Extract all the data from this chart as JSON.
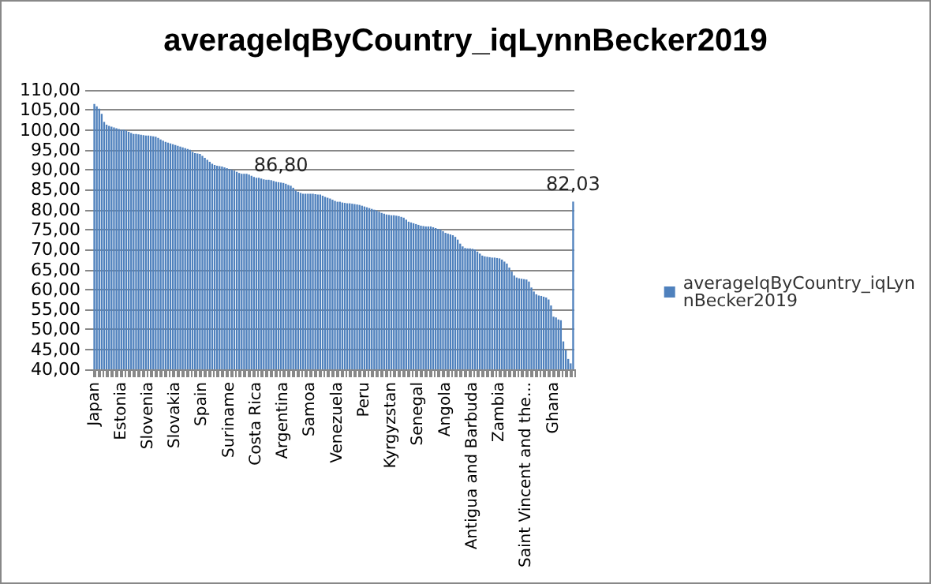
{
  "chart_data": {
    "type": "bar",
    "title": "averageIqByCountry_iqLynnBecker2019",
    "categories": [
      "Japan",
      null,
      null,
      null,
      null,
      null,
      null,
      null,
      null,
      null,
      null,
      "Estonia",
      null,
      null,
      null,
      null,
      null,
      null,
      null,
      null,
      null,
      null,
      "Slovenia",
      null,
      null,
      null,
      null,
      null,
      null,
      null,
      null,
      null,
      null,
      "Slovakia",
      null,
      null,
      null,
      null,
      null,
      null,
      null,
      null,
      null,
      null,
      "Spain",
      null,
      null,
      null,
      null,
      null,
      null,
      null,
      null,
      null,
      null,
      "Suriname",
      null,
      null,
      null,
      null,
      null,
      null,
      null,
      null,
      null,
      null,
      "Costa Rica",
      null,
      null,
      null,
      null,
      null,
      null,
      null,
      null,
      null,
      null,
      "Argentina",
      null,
      null,
      null,
      null,
      null,
      null,
      null,
      null,
      null,
      null,
      "Samoa",
      null,
      null,
      null,
      null,
      null,
      null,
      null,
      null,
      null,
      null,
      "Venezuela",
      null,
      null,
      null,
      null,
      null,
      null,
      null,
      null,
      null,
      null,
      "Peru",
      null,
      null,
      null,
      null,
      null,
      null,
      null,
      null,
      null,
      null,
      "Kyrgyzstan",
      null,
      null,
      null,
      null,
      null,
      null,
      null,
      null,
      null,
      null,
      "Senegal",
      null,
      null,
      null,
      null,
      null,
      null,
      null,
      null,
      null,
      null,
      "Angola",
      null,
      null,
      null,
      null,
      null,
      null,
      null,
      null,
      null,
      null,
      "Antigua and Barbuda",
      null,
      null,
      null,
      null,
      null,
      null,
      null,
      null,
      null,
      null,
      "Zambia",
      null,
      null,
      null,
      null,
      null,
      null,
      null,
      null,
      null,
      null,
      "Saint Vincent and the...",
      null,
      null,
      null,
      null,
      null,
      null,
      null,
      null,
      null,
      null,
      "Ghana",
      null,
      null,
      null,
      null,
      null,
      null,
      null,
      null
    ],
    "series": [
      {
        "name": "averageIqByCountry_iqLynnBecker2019",
        "color": "#4f81bd",
        "values": [
          106.5,
          105.9,
          105.3,
          104,
          102,
          101.3,
          101,
          100.8,
          100.6,
          100.4,
          100.2,
          100,
          100,
          99.8,
          99.5,
          99.2,
          99,
          99,
          98.9,
          98.8,
          98.7,
          98.6,
          98.6,
          98.5,
          98.4,
          98.3,
          98,
          97.6,
          97.3,
          97,
          96.8,
          96.6,
          96.4,
          96.2,
          96,
          95.8,
          95.6,
          95.4,
          95.2,
          95,
          94.5,
          94.2,
          94.1,
          94,
          93.5,
          93,
          92.5,
          92,
          91.5,
          91.2,
          91,
          90.9,
          90.8,
          90.6,
          90.4,
          90.2,
          90,
          89.8,
          89.5,
          89.2,
          89,
          89,
          89,
          88.8,
          88.5,
          88.2,
          88,
          88,
          87.8,
          87.6,
          87.5,
          87.5,
          87.4,
          87.2,
          87,
          86.9,
          86.8,
          86.7,
          86.5,
          86.2,
          86,
          85.5,
          84.8,
          84.5,
          84.2,
          84,
          84,
          84,
          84,
          84,
          83.9,
          83.8,
          83.8,
          83.5,
          83.2,
          83,
          82.8,
          82.5,
          82.2,
          82,
          82,
          81.8,
          81.7,
          81.6,
          81.6,
          81.5,
          81.4,
          81.3,
          81.2,
          81,
          80.8,
          80.6,
          80.4,
          80.2,
          80,
          79.8,
          79.5,
          79.2,
          79,
          78.8,
          78.7,
          78.6,
          78.6,
          78.5,
          78.4,
          78.2,
          78,
          77.5,
          77,
          76.8,
          76.6,
          76.4,
          76.2,
          76,
          75.9,
          75.8,
          75.8,
          75.8,
          75.6,
          75.4,
          75.2,
          75,
          74.6,
          74.2,
          74,
          73.8,
          73.6,
          73.2,
          72.5,
          71.5,
          70.8,
          70.4,
          70.3,
          70.3,
          70.2,
          70,
          69.5,
          69,
          68.5,
          68.3,
          68.2,
          68.1,
          68,
          68,
          67.9,
          67.8,
          67.5,
          67,
          66.5,
          65.5,
          64.5,
          63.5,
          63,
          62.8,
          62.7,
          62.6,
          62.5,
          62,
          60.5,
          59.5,
          58.8,
          58.5,
          58.4,
          58.2,
          58,
          57.5,
          56,
          53.2,
          53,
          52.5,
          52.3,
          47,
          44.8,
          42.6,
          41.5,
          82.03
        ],
        "value_labels": [
          null,
          null,
          null,
          null,
          null,
          null,
          null,
          null,
          null,
          null,
          null,
          null,
          null,
          null,
          null,
          null,
          null,
          null,
          null,
          null,
          null,
          null,
          null,
          null,
          null,
          null,
          null,
          null,
          null,
          null,
          null,
          null,
          null,
          null,
          null,
          null,
          null,
          null,
          null,
          null,
          null,
          null,
          null,
          null,
          null,
          null,
          null,
          null,
          null,
          null,
          null,
          null,
          null,
          null,
          null,
          null,
          null,
          null,
          null,
          null,
          null,
          null,
          null,
          null,
          null,
          null,
          null,
          null,
          null,
          null,
          null,
          null,
          null,
          null,
          null,
          null,
          "86,80",
          null,
          null,
          null,
          null,
          null,
          null,
          null,
          null,
          null,
          null,
          null,
          null,
          null,
          null,
          null,
          null,
          null,
          null,
          null,
          null,
          null,
          null,
          null,
          null,
          null,
          null,
          null,
          null,
          null,
          null,
          null,
          null,
          null,
          null,
          null,
          null,
          null,
          null,
          null,
          null,
          null,
          null,
          null,
          null,
          null,
          null,
          null,
          null,
          null,
          null,
          null,
          null,
          null,
          null,
          null,
          null,
          null,
          null,
          null,
          null,
          null,
          null,
          null,
          null,
          null,
          null,
          null,
          null,
          null,
          null,
          null,
          null,
          null,
          null,
          null,
          null,
          null,
          null,
          null,
          null,
          null,
          null,
          null,
          null,
          null,
          null,
          null,
          null,
          null,
          null,
          null,
          null,
          null,
          null,
          null,
          null,
          null,
          null,
          null,
          null,
          null,
          null,
          null,
          null,
          null,
          null,
          null,
          null,
          null,
          null,
          null,
          null,
          null,
          null,
          null,
          null,
          null,
          null,
          "82,03"
        ]
      }
    ],
    "ylim": [
      40,
      110
    ],
    "yticks": [
      {
        "value": 40,
        "label": "40,00"
      },
      {
        "value": 45,
        "label": "45,00"
      },
      {
        "value": 50,
        "label": "50,00"
      },
      {
        "value": 55,
        "label": "55,00"
      },
      {
        "value": 60,
        "label": "60,00"
      },
      {
        "value": 65,
        "label": "65,00"
      },
      {
        "value": 70,
        "label": "70,00"
      },
      {
        "value": 75,
        "label": "75,00"
      },
      {
        "value": 80,
        "label": "80,00"
      },
      {
        "value": 85,
        "label": "85,00"
      },
      {
        "value": 90,
        "label": "90,00"
      },
      {
        "value": 95,
        "label": "95,00"
      },
      {
        "value": 100,
        "label": "100,00"
      },
      {
        "value": 105,
        "label": "105,00"
      },
      {
        "value": 110,
        "label": "110,00"
      }
    ],
    "grid": "y",
    "legend": "right"
  }
}
